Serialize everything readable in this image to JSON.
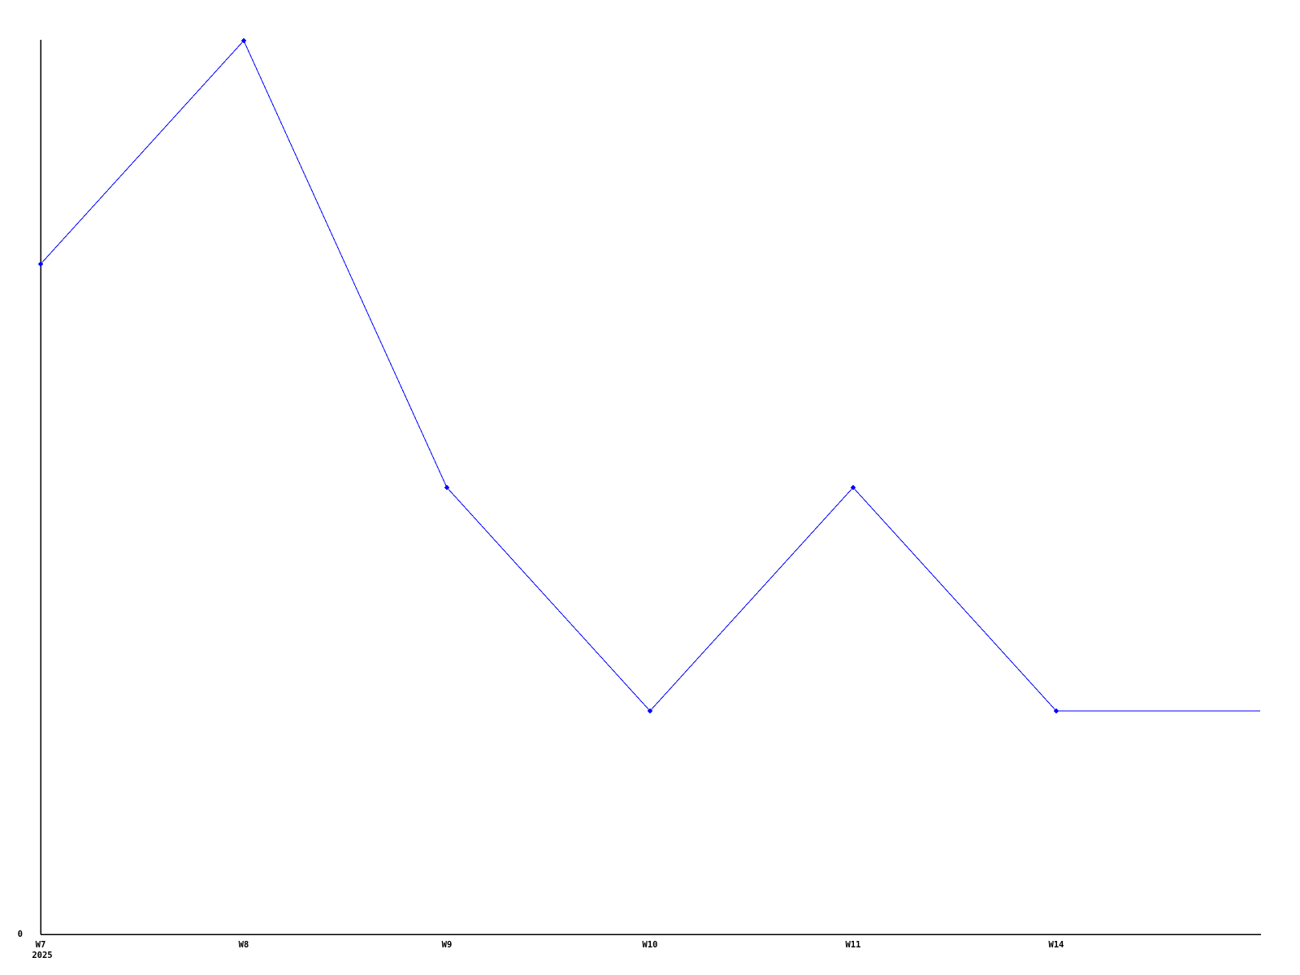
{
  "chart_data": {
    "type": "line",
    "title": "",
    "xlabel": "",
    "ylabel": "",
    "categories": [
      "W7",
      "W8",
      "W9",
      "W10",
      "W11",
      "W14"
    ],
    "series": [
      {
        "name": "value",
        "values": [
          3,
          4,
          2,
          1,
          2,
          1
        ]
      }
    ],
    "trailing_flat_segment": {
      "value": 1,
      "extends_to_plot_right_edge": true
    },
    "x_tick_labels": [
      "W7",
      "W8",
      "W9",
      "W10",
      "W11",
      "W14"
    ],
    "x_secondary_label": {
      "text": "2025",
      "under_category": "W7"
    },
    "y_tick_labels": [
      "0"
    ],
    "ylim": [
      0,
      4.0
    ],
    "grid": false,
    "legend": false,
    "markers": true,
    "line_color": "#0000ff",
    "marker_color": "#0000ff",
    "axis_color": "#000000",
    "background_color": "#ffffff",
    "spines": [
      "left",
      "bottom"
    ]
  }
}
